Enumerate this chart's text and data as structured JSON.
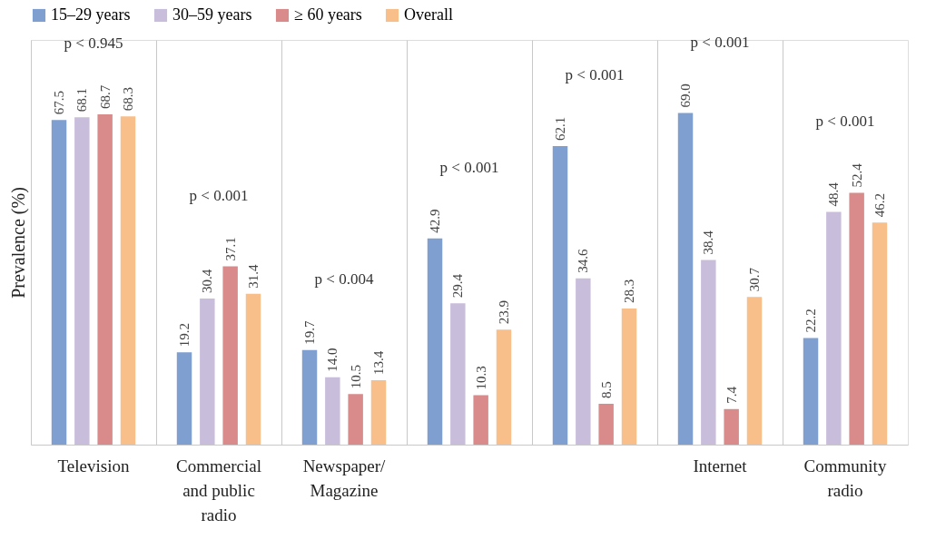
{
  "chart_data": {
    "type": "bar",
    "ylabel": "Prevalence (%)",
    "categories": [
      "Television",
      "Commercial and public radio",
      "Newspaper/Magazine",
      null,
      null,
      "Internet",
      "Community radio"
    ],
    "series": [
      {
        "name": "15–29 years",
        "color": "#7f9fd0",
        "values": [
          67.5,
          19.2,
          19.7,
          42.9,
          62.1,
          69.0,
          22.2
        ],
        "value_labels": [
          "67.5",
          "19.2",
          "19.7",
          "42.9",
          "62.1",
          "69.0",
          "22.2"
        ]
      },
      {
        "name": "30–59 years",
        "color": "#c9bddc",
        "values": [
          68.1,
          30.4,
          14.0,
          29.4,
          34.6,
          38.4,
          48.4
        ],
        "value_labels": [
          "68.1",
          "30.4",
          "14.0",
          "29.4",
          "34.6",
          "38.4",
          "48.4"
        ]
      },
      {
        "name": "≥ 60 years",
        "color": "#d98a8a",
        "values": [
          68.7,
          37.1,
          10.5,
          10.3,
          8.5,
          7.4,
          52.4
        ],
        "value_labels": [
          "68.7",
          "37.1",
          "10.5",
          "10.3",
          "8.5",
          "7.4",
          "52.4"
        ]
      },
      {
        "name": "Overall",
        "color": "#f8bf8a",
        "values": [
          68.3,
          31.4,
          13.4,
          23.9,
          28.3,
          30.7,
          46.2
        ],
        "value_labels": [
          "68.3",
          "31.4",
          "13.4",
          "23.9",
          "28.3",
          "30.7",
          "46.2"
        ]
      }
    ],
    "annotations": [
      "p < 0.945",
      "p < 0.001",
      "p < 0.004",
      "p < 0.001",
      "p < 0.001",
      "p < 0.001",
      "p < 0.001"
    ],
    "legend": "top",
    "grid": "x"
  }
}
